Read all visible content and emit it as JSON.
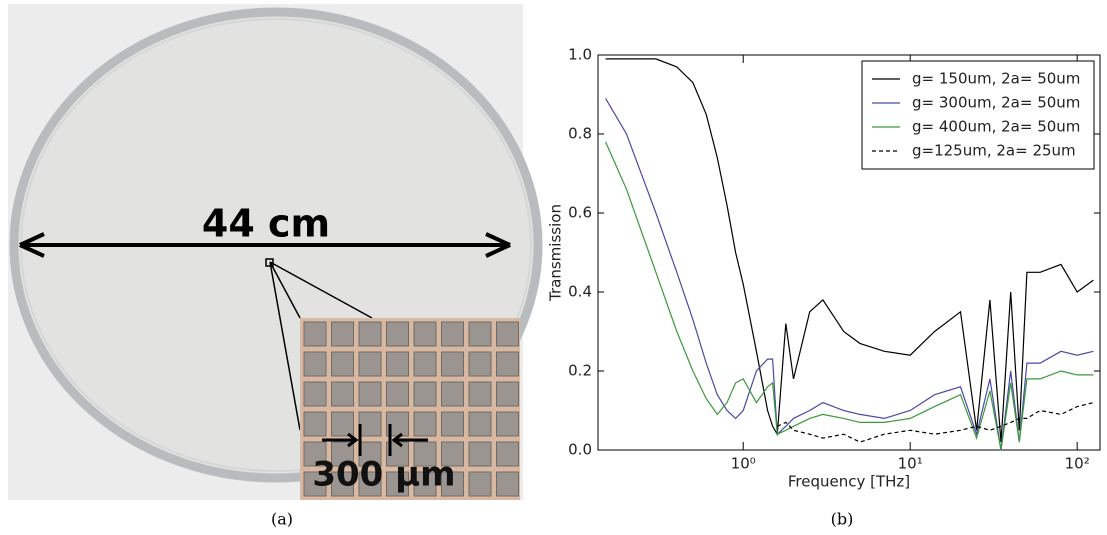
{
  "figure": {
    "captions": [
      "(a)",
      "(b)"
    ]
  },
  "photo": {
    "label": "44 cm",
    "inset_label": "300 µm"
  },
  "chart_data": {
    "type": "line",
    "xlabel": "Frequency [THz]",
    "ylabel": "Transmission",
    "xscale": "log",
    "xlim": [
      0.135,
      137
    ],
    "ylim": [
      0,
      1
    ],
    "xticks": [
      {
        "value": 1,
        "label": "10⁰"
      },
      {
        "value": 10,
        "label": "10¹"
      },
      {
        "value": 100,
        "label": "10²"
      }
    ],
    "yticks": [
      {
        "value": 0,
        "label": "0.0"
      },
      {
        "value": 0.2,
        "label": "0.2"
      },
      {
        "value": 0.4,
        "label": "0.4"
      },
      {
        "value": 0.6,
        "label": "0.6"
      },
      {
        "value": 0.8,
        "label": "0.8"
      },
      {
        "value": 1,
        "label": "1.0"
      }
    ],
    "legend": "upper right",
    "x": [
      0.15,
      0.2,
      0.3,
      0.4,
      0.5,
      0.6,
      0.7,
      0.8,
      0.9,
      1.0,
      1.2,
      1.4,
      1.5,
      1.6,
      1.8,
      2,
      2.5,
      3,
      4,
      5,
      7,
      10,
      14,
      20,
      25,
      30,
      35,
      40,
      45,
      50,
      60,
      80,
      100,
      125
    ],
    "series": [
      {
        "name": "g= 150um, 2a= 50um",
        "color": "#000000",
        "linestyle": "solid",
        "values": [
          0.99,
          0.99,
          0.99,
          0.97,
          0.93,
          0.85,
          0.74,
          0.62,
          0.5,
          0.42,
          0.25,
          0.1,
          0.06,
          0.04,
          0.32,
          0.18,
          0.35,
          0.38,
          0.3,
          0.27,
          0.25,
          0.24,
          0.3,
          0.35,
          0.05,
          0.38,
          0.02,
          0.4,
          0.05,
          0.45,
          0.45,
          0.47,
          0.4,
          0.43
        ]
      },
      {
        "name": "g= 300um, 2a= 50um",
        "color": "#4a4aa8",
        "linestyle": "solid",
        "values": [
          0.89,
          0.8,
          0.6,
          0.45,
          0.33,
          0.22,
          0.14,
          0.1,
          0.08,
          0.1,
          0.2,
          0.23,
          0.23,
          0.04,
          0.06,
          0.08,
          0.1,
          0.12,
          0.1,
          0.09,
          0.08,
          0.1,
          0.14,
          0.16,
          0.04,
          0.18,
          0.0,
          0.2,
          0.02,
          0.22,
          0.22,
          0.25,
          0.24,
          0.25
        ]
      },
      {
        "name": "g= 400um, 2a= 50um",
        "color": "#3a9a3a",
        "linestyle": "solid",
        "values": [
          0.78,
          0.66,
          0.45,
          0.3,
          0.2,
          0.13,
          0.09,
          0.12,
          0.17,
          0.18,
          0.12,
          0.16,
          0.17,
          0.04,
          0.05,
          0.06,
          0.08,
          0.09,
          0.08,
          0.07,
          0.07,
          0.08,
          0.11,
          0.14,
          0.03,
          0.15,
          0.0,
          0.17,
          0.02,
          0.18,
          0.18,
          0.2,
          0.19,
          0.19
        ]
      },
      {
        "name": "g=125um, 2a= 25um",
        "color": "#000000",
        "linestyle": "dashed",
        "values": [
          null,
          null,
          null,
          null,
          null,
          null,
          null,
          null,
          null,
          null,
          null,
          null,
          null,
          0.06,
          0.07,
          0.05,
          0.04,
          0.03,
          0.04,
          0.02,
          0.04,
          0.05,
          0.04,
          0.05,
          0.06,
          0.05,
          0.06,
          0.07,
          0.08,
          0.08,
          0.1,
          0.09,
          0.11,
          0.12
        ]
      }
    ]
  }
}
